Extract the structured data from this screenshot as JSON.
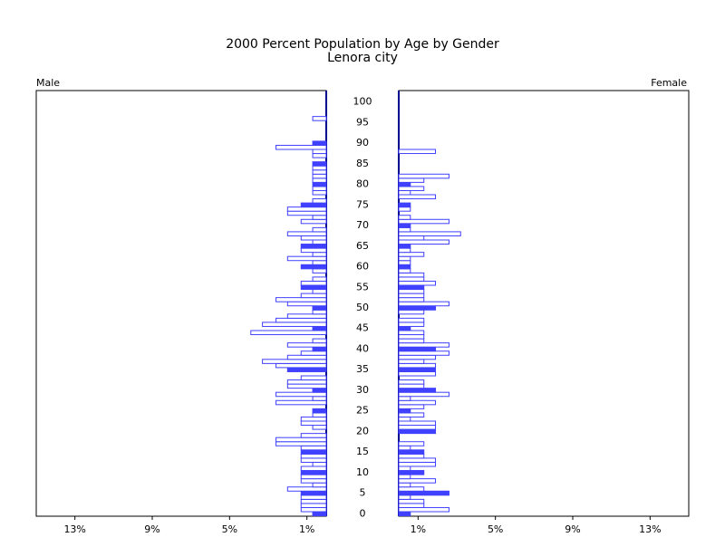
{
  "chart_data": {
    "type": "pyramid",
    "title": "2000 Percent Population by Age by Gender",
    "subtitle": "Lenora city",
    "y": [
      0,
      1,
      2,
      3,
      4,
      5,
      6,
      7,
      8,
      9,
      10,
      11,
      12,
      13,
      14,
      15,
      16,
      17,
      18,
      19,
      20,
      21,
      22,
      23,
      24,
      25,
      26,
      27,
      28,
      29,
      30,
      31,
      32,
      33,
      34,
      35,
      36,
      37,
      38,
      39,
      40,
      41,
      42,
      43,
      44,
      45,
      46,
      47,
      48,
      49,
      50,
      51,
      52,
      53,
      54,
      55,
      56,
      57,
      58,
      59,
      60,
      61,
      62,
      63,
      64,
      65,
      66,
      67,
      68,
      69,
      70,
      71,
      72,
      73,
      74,
      75,
      76,
      77,
      78,
      79,
      80,
      81,
      82,
      83,
      84,
      85,
      86,
      87,
      88,
      89,
      90,
      91,
      92,
      93,
      94,
      95,
      96,
      97,
      98,
      99,
      100
    ],
    "ylim": [
      -0.6,
      102.8
    ],
    "yticks": [
      0,
      5,
      10,
      15,
      20,
      25,
      30,
      35,
      40,
      45,
      50,
      55,
      60,
      65,
      70,
      75,
      80,
      85,
      90,
      95,
      100
    ],
    "xlim": [
      0,
      15
    ],
    "xticks": [
      {
        "value": 1,
        "label": "1%"
      },
      {
        "value": 5,
        "label": "5%"
      },
      {
        "value": 9,
        "label": "9%"
      },
      {
        "value": 13,
        "label": "13%"
      }
    ],
    "series": [
      {
        "name": "Male",
        "color": "#4040ff",
        "values": [
          0.7,
          1.3,
          1.3,
          1.3,
          1.3,
          1.3,
          2.0,
          0.7,
          1.3,
          1.3,
          1.3,
          1.3,
          0.7,
          1.3,
          1.3,
          1.3,
          1.3,
          2.6,
          2.6,
          1.3,
          0,
          0.7,
          1.3,
          1.3,
          0.7,
          0.7,
          0,
          2.6,
          0.7,
          2.6,
          0.7,
          2.0,
          2.0,
          1.3,
          0,
          2.0,
          2.6,
          3.3,
          2.0,
          1.3,
          0.7,
          2.0,
          0.7,
          0,
          3.9,
          0.7,
          3.3,
          2.6,
          2.0,
          0.7,
          0.7,
          2.0,
          2.6,
          1.3,
          0.7,
          1.3,
          1.3,
          0.7,
          0,
          0.7,
          1.3,
          0.7,
          2.0,
          0.7,
          1.3,
          1.3,
          0.7,
          1.3,
          2.0,
          0.7,
          0,
          1.3,
          0.7,
          2.0,
          2.0,
          1.3,
          0.7,
          0,
          0.7,
          0.7,
          0.7,
          0.7,
          0.7,
          0.7,
          0.7,
          0.7,
          0,
          0.7,
          0.7,
          2.6,
          0.7,
          0,
          0,
          0,
          0,
          0,
          0.7,
          0,
          0,
          0,
          0
        ]
      },
      {
        "name": "Female",
        "color": "#4040ff",
        "values": [
          0.6,
          2.6,
          1.3,
          1.3,
          0.6,
          2.6,
          1.3,
          0.6,
          1.9,
          0.6,
          1.3,
          0.6,
          1.9,
          1.9,
          1.3,
          1.3,
          0.6,
          1.3,
          0,
          0,
          1.9,
          1.9,
          1.9,
          0.6,
          1.3,
          0.6,
          1.3,
          1.9,
          0.6,
          2.6,
          1.9,
          1.3,
          1.3,
          0,
          1.9,
          1.9,
          1.9,
          1.3,
          1.9,
          2.6,
          1.9,
          2.6,
          1.3,
          1.3,
          1.3,
          0.6,
          1.3,
          1.3,
          0,
          1.3,
          1.9,
          2.6,
          1.3,
          1.3,
          1.3,
          1.3,
          1.9,
          1.3,
          1.3,
          0.6,
          0.6,
          0.6,
          0.6,
          1.3,
          0.6,
          0.6,
          2.6,
          1.3,
          3.2,
          0.6,
          0.6,
          2.6,
          0.6,
          0,
          0.6,
          0.6,
          0,
          1.9,
          0.6,
          1.3,
          0.6,
          1.3,
          2.6,
          0,
          0,
          0,
          0,
          0,
          1.9,
          0,
          0,
          0,
          0,
          0,
          0,
          0,
          0,
          0,
          0,
          0,
          0
        ]
      }
    ]
  }
}
